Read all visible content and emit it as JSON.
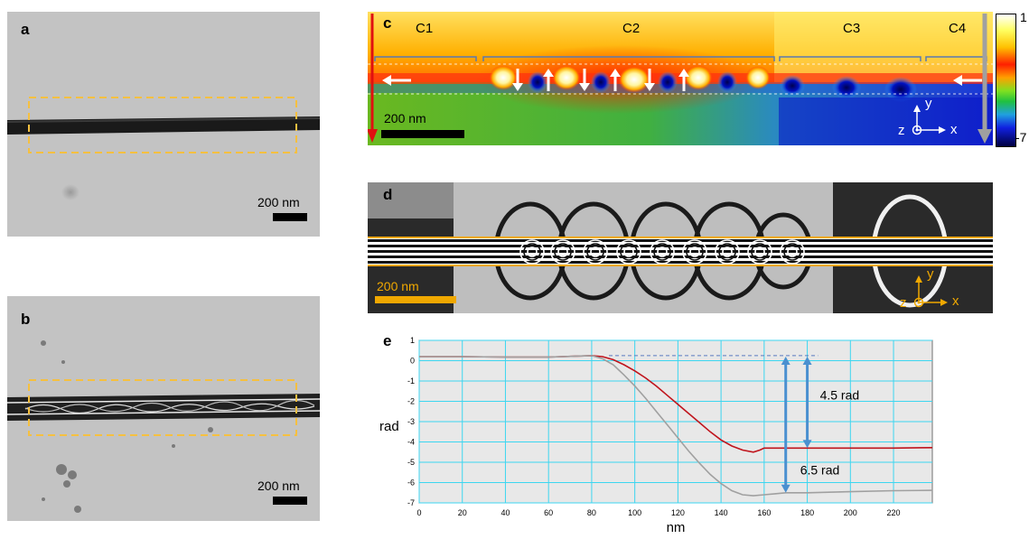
{
  "panels": {
    "a": {
      "label": "a",
      "scalebar": "200 nm"
    },
    "b": {
      "label": "b",
      "scalebar": "200 nm"
    },
    "c": {
      "label": "c",
      "regions": [
        "C1",
        "C2",
        "C3",
        "C4"
      ],
      "scalebar": "200 nm",
      "axes": {
        "y": "y",
        "x": "x",
        "z": "z"
      },
      "colorbar": {
        "max": "1",
        "min": "-7"
      }
    },
    "d": {
      "label": "d",
      "scalebar": "200 nm",
      "axes": {
        "y": "y",
        "x": "x",
        "z": "z"
      }
    },
    "e": {
      "label": "e"
    }
  },
  "chart_data": {
    "type": "line",
    "title": "",
    "xlabel": "nm",
    "ylabel": "rad",
    "xlim": [
      0,
      238
    ],
    "ylim": [
      -7,
      1
    ],
    "xticks": [
      0,
      20,
      40,
      60,
      80,
      100,
      120,
      140,
      160,
      180,
      200,
      220
    ],
    "yticks": [
      1,
      0,
      -1,
      -2,
      -3,
      -4,
      -5,
      -6,
      -7
    ],
    "grid": true,
    "series": [
      {
        "color": "#c0141c",
        "x": [
          0,
          20,
          40,
          60,
          80,
          85,
          90,
          95,
          100,
          105,
          110,
          115,
          120,
          125,
          130,
          135,
          140,
          145,
          150,
          155,
          158,
          160,
          170,
          180,
          200,
          220,
          238
        ],
        "y": [
          0.2,
          0.2,
          0.18,
          0.18,
          0.25,
          0.2,
          0.05,
          -0.2,
          -0.5,
          -0.85,
          -1.25,
          -1.7,
          -2.15,
          -2.6,
          -3.05,
          -3.5,
          -3.9,
          -4.2,
          -4.4,
          -4.5,
          -4.4,
          -4.3,
          -4.3,
          -4.3,
          -4.3,
          -4.3,
          -4.28
        ]
      },
      {
        "color": "#a0a0a0",
        "x": [
          0,
          20,
          40,
          60,
          80,
          85,
          90,
          95,
          100,
          105,
          110,
          115,
          120,
          125,
          130,
          135,
          140,
          145,
          150,
          155,
          160,
          165,
          170,
          180,
          200,
          220,
          238
        ],
        "y": [
          0.2,
          0.2,
          0.18,
          0.18,
          0.25,
          0.1,
          -0.2,
          -0.7,
          -1.25,
          -1.85,
          -2.5,
          -3.15,
          -3.8,
          -4.45,
          -5.05,
          -5.6,
          -6.05,
          -6.4,
          -6.6,
          -6.65,
          -6.6,
          -6.55,
          -6.5,
          -6.5,
          -6.45,
          -6.4,
          -6.38
        ]
      }
    ],
    "reference_line": {
      "y": 0.25,
      "x_from": 88,
      "x_to": 185
    },
    "annotations": [
      {
        "text": "4.5 rad",
        "arrow_x": 180,
        "y_from": 0.2,
        "y_to": -4.3
      },
      {
        "text": "6.5 rad",
        "arrow_x": 170,
        "y_from": 0.2,
        "y_to": -6.5
      }
    ]
  }
}
